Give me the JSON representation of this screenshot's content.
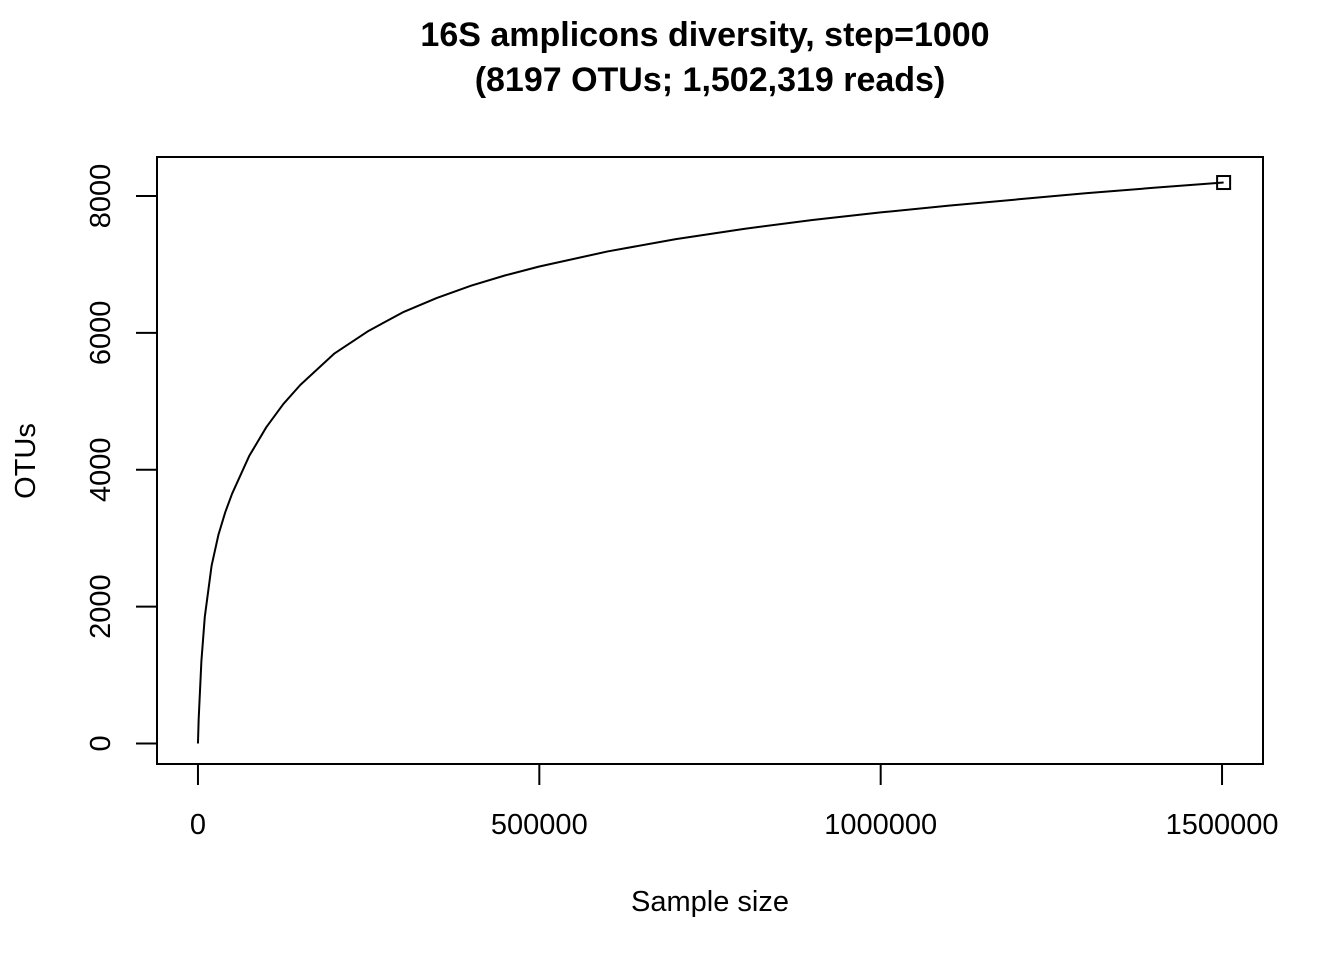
{
  "chart_data": {
    "type": "line",
    "title": "16S amplicons diversity, step=1000",
    "subtitle": "(8197 OTUs; 1,502,319 reads)",
    "xlabel": "Sample size",
    "ylabel": "OTUs",
    "xlim": [
      -60000,
      1560000
    ],
    "ylim": [
      -300,
      8570
    ],
    "x_ticks": [
      0,
      500000,
      1000000,
      1500000
    ],
    "x_tick_labels": [
      "0",
      "500000",
      "1000000",
      "1500000"
    ],
    "y_ticks": [
      0,
      2000,
      4000,
      6000,
      8000
    ],
    "y_tick_labels": [
      "0",
      "2000",
      "4000",
      "6000",
      "8000"
    ],
    "grid": false,
    "legend": "none",
    "series": [
      {
        "x": [
          0,
          1000,
          5000,
          10000,
          20000,
          30000,
          40000,
          50000,
          75000,
          100000,
          125000,
          150000,
          200000,
          250000,
          300000,
          350000,
          400000,
          450000,
          500000,
          600000,
          700000,
          800000,
          900000,
          1000000,
          1100000,
          1200000,
          1300000,
          1400000,
          1502319
        ],
        "y": [
          0,
          350,
          1200,
          1850,
          2600,
          3050,
          3380,
          3650,
          4200,
          4620,
          4960,
          5240,
          5700,
          6030,
          6300,
          6510,
          6690,
          6840,
          6970,
          7190,
          7370,
          7520,
          7650,
          7760,
          7860,
          7950,
          8040,
          8120,
          8197
        ]
      }
    ],
    "end_marker": {
      "x": 1502319,
      "y": 8197,
      "shape": "square"
    },
    "colors": {
      "line": "#000000",
      "axis": "#000000",
      "background": "#ffffff"
    }
  }
}
